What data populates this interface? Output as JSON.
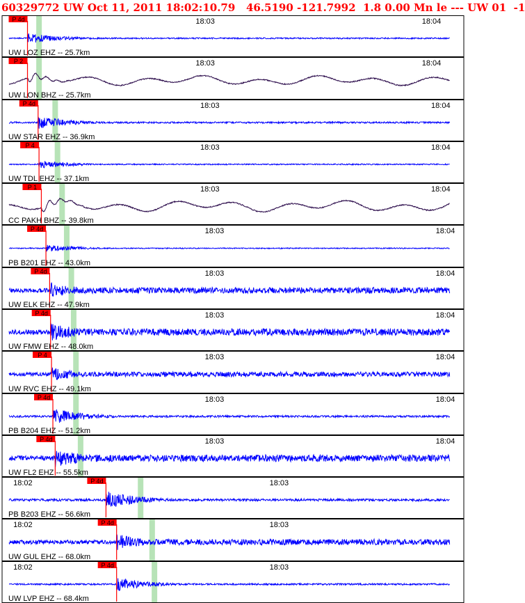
{
  "header": {
    "text": "60329772 UW Oct 11, 2011 18:02:10.79   46.5190 -121.7992  1.8 0.00 Mn le --- UW 01  -1"
  },
  "colors": {
    "header": "#ff0000",
    "trace_blue": "#0000ff",
    "trace_purple": "#2a0a4a",
    "pick_flag": "#ff0000",
    "s_band": "#b7e3b7",
    "frame": "#000000"
  },
  "chart_data": {
    "type": "line",
    "title": "60329772 UW Oct 11, 2011 18:02:10.79   46.5190 -121.7992  1.8 0.00 Mn le --- UW 01  -1",
    "x_unit": "time (HH:MM)",
    "series": [
      {
        "name": "UW LOZ EHZ -- 25.7km",
        "ticks": [
          {
            "t": "18:03",
            "frac": 0.44
          },
          {
            "t": "18:04",
            "frac": 0.93
          }
        ],
        "pick": "P 4d",
        "p_frac": 0.055,
        "s_frac": 0.08,
        "color": "blue",
        "style": "short",
        "amp": 8,
        "end_frac": 0.97
      },
      {
        "name": "UW LON BHZ -- 25.7km",
        "ticks": [
          {
            "t": "18:03",
            "frac": 0.44
          },
          {
            "t": "18:04",
            "frac": 0.93
          }
        ],
        "pick": "P 2",
        "p_frac": 0.055,
        "s_frac": 0.08,
        "color": "purple",
        "style": "wave",
        "amp": 12,
        "end_frac": 0.97
      },
      {
        "name": "UW STAR EHZ -- 36.9km",
        "ticks": [
          {
            "t": "18:03",
            "frac": 0.45
          },
          {
            "t": "18:04",
            "frac": 0.95
          }
        ],
        "pick": "P 4d",
        "p_frac": 0.078,
        "s_frac": 0.115,
        "color": "blue",
        "style": "event",
        "amp": 10,
        "end_frac": 0.97
      },
      {
        "name": "UW TDL EHZ -- 37.1km",
        "ticks": [
          {
            "t": "18:03",
            "frac": 0.45
          },
          {
            "t": "18:04",
            "frac": 0.95
          }
        ],
        "pick": "P 4",
        "p_frac": 0.08,
        "s_frac": 0.12,
        "color": "blue",
        "style": "event",
        "amp": 7,
        "end_frac": 0.97
      },
      {
        "name": "CC PAKH BHZ -- 39.8km",
        "ticks": [
          {
            "t": "18:03",
            "frac": 0.45
          },
          {
            "t": "18:04",
            "frac": 0.95
          }
        ],
        "pick": "P 1",
        "p_frac": 0.085,
        "s_frac": 0.13,
        "color": "purple",
        "style": "wave",
        "amp": 14,
        "end_frac": 0.97
      },
      {
        "name": "PB B201 EHZ -- 43.0km",
        "ticks": [
          {
            "t": "18:03",
            "frac": 0.46
          },
          {
            "t": "18:04",
            "frac": 0.96
          }
        ],
        "pick": "P 4d",
        "p_frac": 0.095,
        "s_frac": 0.14,
        "color": "blue",
        "style": "event",
        "amp": 6,
        "end_frac": 0.97
      },
      {
        "name": "UW ELK EHZ -- 47.9km",
        "ticks": [
          {
            "t": "18:03",
            "frac": 0.46
          },
          {
            "t": "18:04",
            "frac": 0.96
          }
        ],
        "pick": "P 4d",
        "p_frac": 0.103,
        "s_frac": 0.15,
        "color": "blue",
        "style": "noisy",
        "amp": 12,
        "end_frac": 0.97
      },
      {
        "name": "UW FMW EHZ -- 48.0km",
        "ticks": [
          {
            "t": "18:03",
            "frac": 0.46
          },
          {
            "t": "18:04",
            "frac": 0.96
          }
        ],
        "pick": "P 4d",
        "p_frac": 0.105,
        "s_frac": 0.155,
        "color": "blue",
        "style": "noisy",
        "amp": 14,
        "end_frac": 0.97
      },
      {
        "name": "UW RVC EHZ -- 49.1km",
        "ticks": [
          {
            "t": "18:03",
            "frac": 0.46
          },
          {
            "t": "18:04",
            "frac": 0.96
          }
        ],
        "pick": "P 4",
        "p_frac": 0.107,
        "s_frac": 0.16,
        "color": "blue",
        "style": "noisy",
        "amp": 10,
        "end_frac": 0.97
      },
      {
        "name": "PB B204 EHZ -- 51.2km",
        "ticks": [
          {
            "t": "18:03",
            "frac": 0.46
          },
          {
            "t": "18:04",
            "frac": 0.96
          }
        ],
        "pick": "P 4d",
        "p_frac": 0.11,
        "s_frac": 0.16,
        "color": "blue",
        "style": "event",
        "amp": 12,
        "end_frac": 0.97
      },
      {
        "name": "UW FL2 EHZ -- 55.5km",
        "ticks": [
          {
            "t": "18:03",
            "frac": 0.46
          },
          {
            "t": "18:04",
            "frac": 0.96
          }
        ],
        "pick": "P 4d",
        "p_frac": 0.115,
        "s_frac": 0.17,
        "color": "blue",
        "style": "noisy",
        "amp": 14,
        "end_frac": 0.97
      },
      {
        "name": "PB B203 EHZ -- 56.6km",
        "ticks": [
          {
            "t": "18:02",
            "frac": 0.045
          },
          {
            "t": "18:03",
            "frac": 0.6
          }
        ],
        "pick": "P 4d",
        "p_frac": 0.225,
        "s_frac": 0.3,
        "color": "blue",
        "style": "event",
        "amp": 14,
        "end_frac": 0.97
      },
      {
        "name": "UW GUL EHZ -- 68.0km",
        "ticks": [
          {
            "t": "18:02",
            "frac": 0.045
          },
          {
            "t": "18:03",
            "frac": 0.6
          }
        ],
        "pick": "P 4d",
        "p_frac": 0.248,
        "s_frac": 0.325,
        "color": "blue",
        "style": "noisy",
        "amp": 12,
        "end_frac": 0.97
      },
      {
        "name": "UW LVP EHZ -- 68.4km",
        "ticks": [
          {
            "t": "18:02",
            "frac": 0.045
          },
          {
            "t": "18:03",
            "frac": 0.6
          }
        ],
        "pick": "P 4d",
        "p_frac": 0.248,
        "s_frac": 0.33,
        "color": "blue",
        "style": "event",
        "amp": 10,
        "end_frac": 0.97
      }
    ]
  }
}
